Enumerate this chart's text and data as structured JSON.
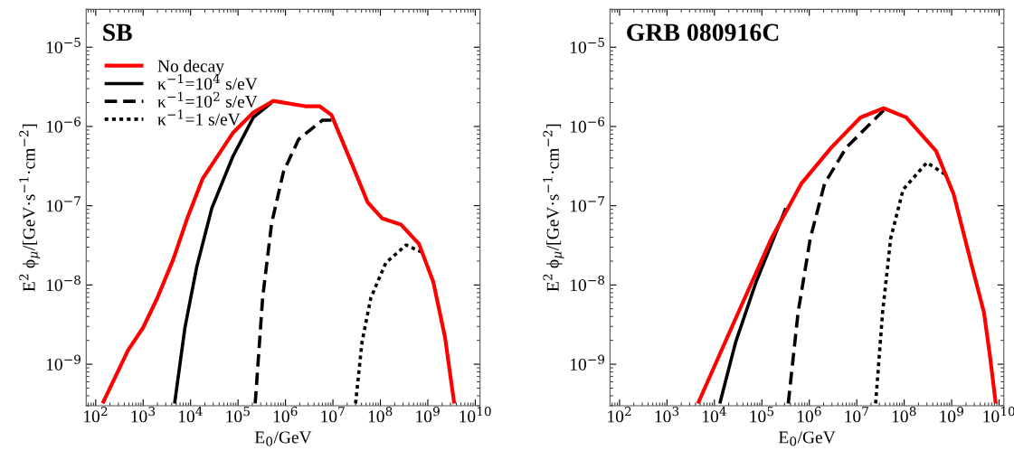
{
  "chart_data": [
    {
      "type": "line",
      "title": "SB",
      "xlabel": "E$_{0}$/GeV",
      "ylabel": "E$^{2}$ ϕ$_{μ}$/[GeV·s$^{−1}$·cm$^{−2}$]",
      "log": "xy",
      "legend": "top left",
      "xlim": [
        63,
        12600000000
      ],
      "ylim": [
        3e-10,
        3e-05
      ],
      "xticks": [
        {
          "value": 100,
          "label": "10$^{2}$"
        },
        {
          "value": 1000,
          "label": "10$^{3}$"
        },
        {
          "value": 10000,
          "label": "10$^{4}$"
        },
        {
          "value": 100000,
          "label": "10$^{5}$"
        },
        {
          "value": 1000000,
          "label": "10$^{6}$"
        },
        {
          "value": 10000000,
          "label": "10$^{7}$"
        },
        {
          "value": 100000000,
          "label": "10$^{8}$"
        },
        {
          "value": 1000000000,
          "label": "10$^{9}$"
        },
        {
          "value": 10000000000,
          "label": "10$^{10}$"
        }
      ],
      "yticks": [
        {
          "value": 1e-09,
          "label": "10$^{−9}$"
        },
        {
          "value": 1e-08,
          "label": "10$^{−8}$"
        },
        {
          "value": 1e-07,
          "label": "10$^{−7}$"
        },
        {
          "value": 1e-06,
          "label": "10$^{−6}$"
        },
        {
          "value": 1e-05,
          "label": "10$^{−5}$"
        }
      ],
      "series": [
        {
          "name": "κ$^{−1}$=10$^{4}$ s/eV",
          "color": "#000000",
          "line_style": "solid",
          "x": [
            4600,
            7600,
            13500,
            28000,
            78000,
            210000,
            510000
          ],
          "values": [
            3.2e-10,
            2.9e-09,
            1.7e-08,
            9.3e-08,
            4.2e-07,
            1.3e-06,
            2e-06
          ]
        },
        {
          "name": "κ$^{−1}$=10$^{2}$ s/eV",
          "color": "#000000",
          "line_style": "dashed",
          "x": [
            230000,
            330000,
            510000,
            910000,
            1900000,
            6000000,
            9300000
          ],
          "values": [
            3.2e-10,
            6.9e-09,
            6e-08,
            2.7e-07,
            6.9e-07,
            1.2e-06,
            1.2e-06
          ]
        },
        {
          "name": "κ$^{−1}$=1 s/eV",
          "color": "#000000",
          "line_style": "dotted",
          "x": [
            30000000,
            41000000,
            63000000,
            130000000,
            350000000,
            740000000
          ],
          "values": [
            3.2e-10,
            1.9e-09,
            6.9e-09,
            1.9e-08,
            3.2e-08,
            2.6e-08
          ]
        },
        {
          "name": "No decay",
          "color": "#ff0000",
          "line_style": "solid",
          "x": [
            140,
            480,
            1000,
            2000,
            4300,
            8700,
            18000,
            78000,
            210000,
            550000,
            2600000,
            5200000,
            9300000,
            26000000,
            54000000,
            110000000,
            270000000,
            650000000,
            1300000000,
            2300000000,
            3600000000
          ],
          "values": [
            3.2e-10,
            1.5e-09,
            2.9e-09,
            6.9e-09,
            2.1e-08,
            7.2e-08,
            2.2e-07,
            8.3e-07,
            1.5e-06,
            2.1e-06,
            1.8e-06,
            1.8e-06,
            1.4e-06,
            3.2e-07,
            1.1e-07,
            6.9e-08,
            5.8e-08,
            3.3e-08,
            1.1e-08,
            2.2e-09,
            3.2e-10
          ]
        }
      ]
    },
    {
      "type": "line",
      "title": "GRB 080916C",
      "xlabel": "E$_{0}$/GeV",
      "ylabel": "E$^{2}$ ϕ$_{μ}$/[GeV·s$^{−1}$·cm$^{−2}$]",
      "log": "xy",
      "xlim": [
        63,
        12600000000
      ],
      "ylim": [
        3e-10,
        3e-05
      ],
      "xticks": [
        {
          "value": 100,
          "label": "10$^{2}$"
        },
        {
          "value": 1000,
          "label": "10$^{3}$"
        },
        {
          "value": 10000,
          "label": "10$^{4}$"
        },
        {
          "value": 100000,
          "label": "10$^{5}$"
        },
        {
          "value": 1000000,
          "label": "10$^{6}$"
        },
        {
          "value": 10000000,
          "label": "10$^{7}$"
        },
        {
          "value": 100000000,
          "label": "10$^{8}$"
        },
        {
          "value": 1000000000,
          "label": "10$^{9}$"
        },
        {
          "value": 10000000000,
          "label": "10$^{10}$"
        }
      ],
      "yticks": [
        {
          "value": 1e-09,
          "label": "10$^{−9}$"
        },
        {
          "value": 1e-08,
          "label": "10$^{−8}$"
        },
        {
          "value": 1e-07,
          "label": "10$^{−7}$"
        },
        {
          "value": 1e-06,
          "label": "10$^{−6}$"
        },
        {
          "value": 1e-05,
          "label": "10$^{−5}$"
        }
      ],
      "series": [
        {
          "color": "#000000",
          "line_style": "solid",
          "x": [
            13000,
            28000,
            76000,
            320000
          ],
          "values": [
            3.2e-10,
            1.9e-09,
            1.1e-08,
            9.3e-08
          ]
        },
        {
          "color": "#000000",
          "line_style": "dashed",
          "x": [
            360000,
            580000,
            1050000,
            2100000,
            6000000,
            26000000,
            37000000
          ],
          "values": [
            3.2e-10,
            4.5e-09,
            3.9e-08,
            1.9e-07,
            5.4e-07,
            1.3e-06,
            1.6e-06
          ]
        },
        {
          "color": "#000000",
          "line_style": "dotted",
          "x": [
            25000000,
            35000000,
            52000000,
            95000000,
            300000000,
            720000000
          ],
          "values": [
            3.2e-10,
            4.5e-09,
            3.9e-08,
            1.6e-07,
            3.5e-07,
            2.5e-07
          ]
        },
        {
          "color": "#ff0000",
          "line_style": "solid",
          "x": [
            4500,
            23000,
            160000,
            680000,
            2900000,
            12000000,
            37000000,
            110000000,
            470000000,
            1100000000,
            2700000000,
            4800000000,
            6500000000,
            8500000000
          ],
          "values": [
            3.2e-10,
            2.9e-09,
            3.9e-08,
            1.9e-07,
            5.4e-07,
            1.3e-06,
            1.7e-06,
            1.3e-06,
            4.9e-07,
            1.4e-07,
            1.7e-08,
            4.5e-09,
            1.2e-09,
            3.2e-10
          ]
        }
      ]
    }
  ]
}
